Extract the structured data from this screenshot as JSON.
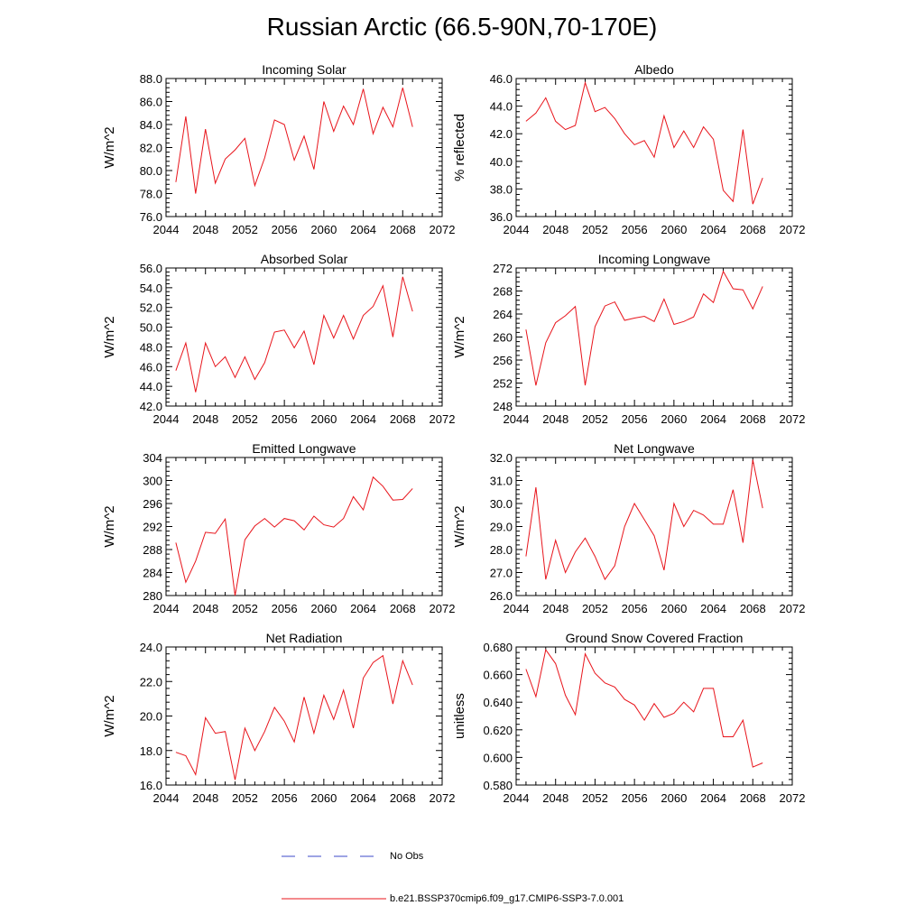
{
  "figure": {
    "title": "Russian Arctic (66.5-90N,70-170E)",
    "line_color": "#e8141b",
    "obs_color": "#3b49c9"
  },
  "legend": {
    "entries": [
      {
        "label": "No Obs",
        "style": "dashed",
        "color": "#3b49c9"
      },
      {
        "label": "b.e21.BSSP370cmip6.f09_g17.CMIP6-SSP3-7.0.001",
        "style": "solid",
        "color": "#e8141b"
      }
    ]
  },
  "chart_data": [
    {
      "type": "line",
      "title": "Incoming Solar",
      "ylabel": "W/m^2",
      "xlabel": "",
      "xlim": [
        2044,
        2072
      ],
      "xticks": [
        "2044",
        "2048",
        "2052",
        "2056",
        "2060",
        "2064",
        "2068",
        "2072"
      ],
      "ylim": [
        76,
        88
      ],
      "yticks": [
        "76.0",
        "78.0",
        "80.0",
        "82.0",
        "84.0",
        "86.0",
        "88.0"
      ],
      "x": [
        2045,
        2046,
        2047,
        2048,
        2049,
        2050,
        2051,
        2052,
        2053,
        2054,
        2055,
        2056,
        2057,
        2058,
        2059,
        2060,
        2061,
        2062,
        2063,
        2064,
        2065,
        2066,
        2067,
        2068,
        2069
      ],
      "series": [
        {
          "values": [
            79.0,
            84.7,
            78.0,
            83.6,
            78.9,
            81.0,
            81.8,
            82.8,
            78.7,
            81.1,
            84.4,
            84.0,
            80.9,
            83.0,
            80.1,
            86.0,
            83.4,
            85.6,
            84.0,
            87.1,
            83.2,
            85.5,
            83.8,
            87.2,
            83.8
          ]
        }
      ]
    },
    {
      "type": "line",
      "title": "Albedo",
      "ylabel": "% reflected",
      "xlabel": "",
      "xlim": [
        2044,
        2072
      ],
      "xticks": [
        "2044",
        "2048",
        "2052",
        "2056",
        "2060",
        "2064",
        "2068",
        "2072"
      ],
      "ylim": [
        36,
        46
      ],
      "yticks": [
        "36.0",
        "38.0",
        "40.0",
        "42.0",
        "44.0",
        "46.0"
      ],
      "x": [
        2045,
        2046,
        2047,
        2048,
        2049,
        2050,
        2051,
        2052,
        2053,
        2054,
        2055,
        2056,
        2057,
        2058,
        2059,
        2060,
        2061,
        2062,
        2063,
        2064,
        2065,
        2066,
        2067,
        2068,
        2069
      ],
      "series": [
        {
          "values": [
            42.9,
            43.5,
            44.6,
            42.9,
            42.3,
            42.6,
            45.7,
            43.6,
            43.9,
            43.1,
            42.0,
            41.2,
            41.5,
            40.3,
            43.3,
            41.0,
            42.2,
            41.0,
            42.5,
            41.6,
            37.9,
            37.1,
            42.3,
            36.9,
            38.8
          ]
        }
      ]
    },
    {
      "type": "line",
      "title": "Absorbed Solar",
      "ylabel": "W/m^2",
      "xlabel": "",
      "xlim": [
        2044,
        2072
      ],
      "xticks": [
        "2044",
        "2048",
        "2052",
        "2056",
        "2060",
        "2064",
        "2068",
        "2072"
      ],
      "ylim": [
        42,
        56
      ],
      "yticks": [
        "42.0",
        "44.0",
        "46.0",
        "48.0",
        "50.0",
        "52.0",
        "54.0",
        "56.0"
      ],
      "x": [
        2045,
        2046,
        2047,
        2048,
        2049,
        2050,
        2051,
        2052,
        2053,
        2054,
        2055,
        2056,
        2057,
        2058,
        2059,
        2060,
        2061,
        2062,
        2063,
        2064,
        2065,
        2066,
        2067,
        2068,
        2069
      ],
      "series": [
        {
          "values": [
            45.6,
            48.4,
            43.4,
            48.4,
            46.0,
            47.0,
            44.9,
            47.0,
            44.7,
            46.4,
            49.5,
            49.7,
            47.9,
            49.6,
            46.2,
            51.2,
            48.9,
            51.2,
            48.8,
            51.2,
            52.1,
            54.2,
            49.0,
            55.1,
            51.6
          ]
        }
      ]
    },
    {
      "type": "line",
      "title": "Incoming Longwave",
      "ylabel": "W/m^2",
      "xlabel": "",
      "xlim": [
        2044,
        2072
      ],
      "xticks": [
        "2044",
        "2048",
        "2052",
        "2056",
        "2060",
        "2064",
        "2068",
        "2072"
      ],
      "ylim": [
        248,
        272
      ],
      "yticks": [
        "248",
        "252",
        "256",
        "260",
        "264",
        "268",
        "272"
      ],
      "x": [
        2045,
        2046,
        2047,
        2048,
        2049,
        2050,
        2051,
        2052,
        2053,
        2054,
        2055,
        2056,
        2057,
        2058,
        2059,
        2060,
        2061,
        2062,
        2063,
        2064,
        2065,
        2066,
        2067,
        2068,
        2069
      ],
      "series": [
        {
          "values": [
            261.3,
            251.6,
            259.0,
            262.5,
            263.7,
            265.3,
            251.6,
            261.8,
            265.4,
            266.1,
            262.9,
            263.3,
            263.6,
            262.7,
            266.6,
            262.2,
            262.7,
            263.5,
            267.5,
            266.0,
            271.4,
            268.4,
            268.2,
            264.9,
            268.8
          ]
        }
      ]
    },
    {
      "type": "line",
      "title": "Emitted Longwave",
      "ylabel": "W/m^2",
      "xlabel": "",
      "xlim": [
        2044,
        2072
      ],
      "xticks": [
        "2044",
        "2048",
        "2052",
        "2056",
        "2060",
        "2064",
        "2068",
        "2072"
      ],
      "ylim": [
        280,
        304
      ],
      "yticks": [
        "280",
        "284",
        "288",
        "292",
        "296",
        "300",
        "304"
      ],
      "x": [
        2045,
        2046,
        2047,
        2048,
        2049,
        2050,
        2051,
        2052,
        2053,
        2054,
        2055,
        2056,
        2057,
        2058,
        2059,
        2060,
        2061,
        2062,
        2063,
        2064,
        2065,
        2066,
        2067,
        2068,
        2069
      ],
      "series": [
        {
          "values": [
            289.2,
            282.3,
            286.0,
            291.0,
            290.8,
            293.3,
            280.0,
            289.7,
            292.1,
            293.4,
            291.9,
            293.4,
            293.0,
            291.4,
            293.8,
            292.3,
            291.9,
            293.4,
            297.2,
            294.9,
            300.6,
            299.0,
            296.6,
            296.7,
            298.6
          ]
        }
      ]
    },
    {
      "type": "line",
      "title": "Net Longwave",
      "ylabel": "W/m^2",
      "xlabel": "",
      "xlim": [
        2044,
        2072
      ],
      "xticks": [
        "2044",
        "2048",
        "2052",
        "2056",
        "2060",
        "2064",
        "2068",
        "2072"
      ],
      "ylim": [
        26,
        32
      ],
      "yticks": [
        "26.0",
        "27.0",
        "28.0",
        "29.0",
        "30.0",
        "31.0",
        "32.0"
      ],
      "x": [
        2045,
        2046,
        2047,
        2048,
        2049,
        2050,
        2051,
        2052,
        2053,
        2054,
        2055,
        2056,
        2057,
        2058,
        2059,
        2060,
        2061,
        2062,
        2063,
        2064,
        2065,
        2066,
        2067,
        2068,
        2069
      ],
      "series": [
        {
          "values": [
            27.7,
            30.7,
            26.7,
            28.4,
            27.0,
            27.9,
            28.5,
            27.7,
            26.7,
            27.3,
            29.0,
            30.0,
            29.3,
            28.6,
            27.1,
            30.0,
            29.0,
            29.7,
            29.5,
            29.1,
            29.1,
            30.6,
            28.3,
            31.9,
            29.8
          ]
        }
      ]
    },
    {
      "type": "line",
      "title": "Net Radiation",
      "ylabel": "W/m^2",
      "xlabel": "",
      "xlim": [
        2044,
        2072
      ],
      "xticks": [
        "2044",
        "2048",
        "2052",
        "2056",
        "2060",
        "2064",
        "2068",
        "2072"
      ],
      "ylim": [
        16,
        24
      ],
      "yticks": [
        "16.0",
        "18.0",
        "20.0",
        "22.0",
        "24.0"
      ],
      "x": [
        2045,
        2046,
        2047,
        2048,
        2049,
        2050,
        2051,
        2052,
        2053,
        2054,
        2055,
        2056,
        2057,
        2058,
        2059,
        2060,
        2061,
        2062,
        2063,
        2064,
        2065,
        2066,
        2067,
        2068,
        2069
      ],
      "series": [
        {
          "values": [
            17.9,
            17.7,
            16.6,
            19.9,
            19.0,
            19.1,
            16.3,
            19.3,
            18.0,
            19.1,
            20.5,
            19.7,
            18.5,
            21.1,
            19.0,
            21.2,
            19.8,
            21.5,
            19.3,
            22.2,
            23.1,
            23.5,
            20.7,
            23.2,
            21.8
          ]
        }
      ]
    },
    {
      "type": "line",
      "title": "Ground Snow Covered Fraction",
      "ylabel": "unitless",
      "xlabel": "",
      "xlim": [
        2044,
        2072
      ],
      "xticks": [
        "2044",
        "2048",
        "2052",
        "2056",
        "2060",
        "2064",
        "2068",
        "2072"
      ],
      "ylim": [
        0.58,
        0.68
      ],
      "yticks": [
        "0.580",
        "0.600",
        "0.620",
        "0.640",
        "0.660",
        "0.680"
      ],
      "x": [
        2045,
        2046,
        2047,
        2048,
        2049,
        2050,
        2051,
        2052,
        2053,
        2054,
        2055,
        2056,
        2057,
        2058,
        2059,
        2060,
        2061,
        2062,
        2063,
        2064,
        2065,
        2066,
        2067,
        2068,
        2069
      ],
      "series": [
        {
          "values": [
            0.664,
            0.644,
            0.678,
            0.668,
            0.645,
            0.631,
            0.675,
            0.661,
            0.654,
            0.651,
            0.642,
            0.638,
            0.627,
            0.639,
            0.629,
            0.632,
            0.64,
            0.633,
            0.65,
            0.65,
            0.615,
            0.615,
            0.627,
            0.593,
            0.596
          ]
        }
      ]
    }
  ]
}
